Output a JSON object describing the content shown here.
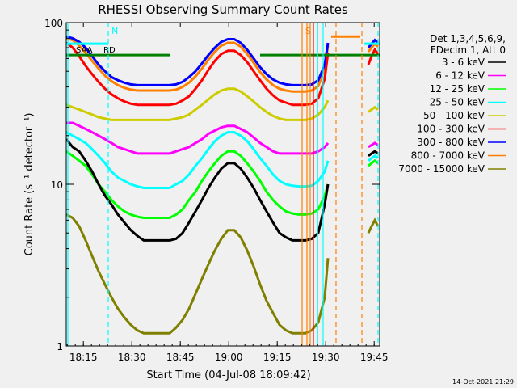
{
  "chart_data": {
    "type": "line",
    "title": "RHESSI Observing Summary Count Rates",
    "xlabel": "Start Time (04-Jul-08 18:09:42)",
    "ylabel": "Count Rate (s⁻¹ detector⁻¹)",
    "x_unit": "minutes after 18:09:42 UT",
    "xlim": [
      0,
      97
    ],
    "ylim": [
      1,
      100
    ],
    "yscale": "log",
    "x_ticks": [
      {
        "label": "18:15",
        "value": 5.3
      },
      {
        "label": "18:30",
        "value": 20.3
      },
      {
        "label": "18:45",
        "value": 35.3
      },
      {
        "label": "19:00",
        "value": 50.3
      },
      {
        "label": "19:15",
        "value": 65.3
      },
      {
        "label": "19:30",
        "value": 80.3
      },
      {
        "label": "19:45",
        "value": 95.3
      }
    ],
    "y_ticks": [
      {
        "label": "1",
        "value": 1
      },
      {
        "label": "10",
        "value": 10
      },
      {
        "label": "100",
        "value": 100
      }
    ],
    "legend": {
      "position": "right",
      "header": [
        "Det 1,3,4,5,6,9,",
        "FDecim 1, Att 0"
      ]
    },
    "x": [
      0,
      2,
      4,
      6,
      8,
      10,
      12,
      14,
      16,
      18,
      20,
      22,
      24,
      26,
      28,
      30,
      32,
      34,
      36,
      38,
      40,
      42,
      44,
      46,
      48,
      50,
      52,
      54,
      56,
      58,
      60,
      62,
      64,
      66,
      68,
      70,
      72,
      74,
      76,
      78,
      80,
      81
    ],
    "series": [
      {
        "name": "3 - 6 keV",
        "color": "#000000",
        "values": [
          19,
          17,
          16,
          14,
          12,
          10,
          8.5,
          7.5,
          6.5,
          5.8,
          5.2,
          4.8,
          4.5,
          4.5,
          4.5,
          4.5,
          4.5,
          4.6,
          5,
          5.8,
          6.8,
          8,
          9.5,
          11,
          12.5,
          13.5,
          13.5,
          12.5,
          11,
          9.5,
          8,
          6.8,
          5.8,
          5,
          4.7,
          4.5,
          4.5,
          4.5,
          4.6,
          5,
          7.5,
          10
        ]
      },
      {
        "name": "6 - 12 keV",
        "color": "#ff00ff",
        "values": [
          24,
          24,
          23,
          22,
          21,
          20,
          19,
          18,
          17,
          16.5,
          16,
          15.5,
          15.5,
          15.5,
          15.5,
          15.5,
          15.5,
          16,
          16.5,
          17,
          18,
          19,
          20.5,
          21.5,
          22.5,
          23,
          23,
          22,
          21,
          19.5,
          18,
          17,
          16,
          15.5,
          15.5,
          15.5,
          15.5,
          15.5,
          15.5,
          16,
          17,
          18
        ]
      },
      {
        "name": "12 - 25 keV",
        "color": "#00ff00",
        "values": [
          16,
          15,
          14,
          13,
          11.5,
          10,
          9,
          8,
          7.3,
          6.8,
          6.5,
          6.3,
          6.2,
          6.2,
          6.2,
          6.2,
          6.2,
          6.5,
          7,
          8,
          9,
          10.5,
          12,
          13.5,
          15,
          16,
          16,
          15,
          13.5,
          12,
          10.5,
          9,
          8,
          7.3,
          6.8,
          6.6,
          6.5,
          6.5,
          6.6,
          7,
          8.5,
          10
        ]
      },
      {
        "name": "25 - 50 keV",
        "color": "#00ffff",
        "values": [
          21,
          20,
          19,
          18,
          16.5,
          15,
          13.5,
          12,
          11,
          10.5,
          10,
          9.7,
          9.5,
          9.5,
          9.5,
          9.5,
          9.5,
          10,
          10.5,
          11.5,
          13,
          14.5,
          16.5,
          18.5,
          20,
          21,
          21,
          20,
          18.5,
          16.5,
          14.5,
          13,
          11.5,
          10.5,
          10,
          9.8,
          9.7,
          9.7,
          9.8,
          10.5,
          12,
          14
        ]
      },
      {
        "name": "50 - 100 keV",
        "color": "#cccc00",
        "values": [
          31,
          30,
          29,
          28,
          27,
          26,
          25.5,
          25,
          25,
          25,
          25,
          25,
          25,
          25,
          25,
          25,
          25,
          25.5,
          26,
          27,
          29,
          31,
          33.5,
          36,
          38,
          39,
          39,
          37.5,
          35,
          32.5,
          30,
          28,
          26.5,
          25.5,
          25,
          25,
          25,
          25,
          25.5,
          27,
          30,
          33
        ]
      },
      {
        "name": "100 - 300 keV",
        "color": "#ff0000",
        "values": [
          75,
          70,
          62,
          54,
          48,
          43,
          39,
          36,
          34,
          32.5,
          31.5,
          31,
          31,
          31,
          31,
          31,
          31,
          31.5,
          33,
          35,
          39,
          44,
          51,
          58,
          64,
          67,
          67,
          63,
          57,
          50,
          44,
          39,
          35.5,
          33,
          32,
          31,
          31,
          31,
          31.5,
          34,
          45,
          65
        ]
      },
      {
        "name": "300 - 800 keV",
        "color": "#0000ff",
        "values": [
          82,
          80,
          76,
          70,
          62,
          55,
          50,
          46,
          44,
          42.5,
          41.5,
          41,
          41,
          41,
          41,
          41,
          41,
          41.5,
          43,
          46,
          50,
          56,
          63,
          70,
          76,
          79,
          79,
          75,
          68,
          60,
          53,
          48,
          44.5,
          42.5,
          41.5,
          41,
          41,
          41,
          41.5,
          44,
          55,
          75
        ]
      },
      {
        "name": "800 - 7000 keV",
        "color": "#ff8000",
        "values": [
          80,
          78,
          72,
          65,
          58,
          52,
          47,
          43.5,
          41,
          39.5,
          38.5,
          38,
          38,
          38,
          38,
          38,
          38,
          38.5,
          40,
          42.5,
          46.5,
          52,
          59,
          66,
          72,
          75,
          75,
          71,
          64,
          56.5,
          49.5,
          44.5,
          41,
          39,
          38,
          37.5,
          37.5,
          37.5,
          38,
          40.5,
          52,
          72
        ]
      },
      {
        "name": "7000 - 15000 keV",
        "color": "#808000",
        "values": [
          6.5,
          6.2,
          5.5,
          4.5,
          3.6,
          2.9,
          2.4,
          2,
          1.7,
          1.5,
          1.35,
          1.25,
          1.2,
          1.2,
          1.2,
          1.2,
          1.2,
          1.3,
          1.45,
          1.7,
          2.1,
          2.6,
          3.2,
          3.9,
          4.6,
          5.2,
          5.2,
          4.7,
          3.9,
          3.1,
          2.4,
          1.9,
          1.6,
          1.35,
          1.25,
          1.2,
          1.2,
          1.2,
          1.25,
          1.4,
          2,
          3.5
        ]
      }
    ],
    "late_segment": {
      "x": [
        93.5,
        94.5,
        95.5,
        96.5
      ],
      "values": [
        [
          15,
          15.5,
          16,
          15.5
        ],
        [
          17,
          17.5,
          18,
          17.5
        ],
        [
          13,
          13.5,
          14,
          13.5
        ],
        [
          14,
          14.5,
          15,
          14.5
        ],
        [
          28,
          29,
          30,
          29
        ],
        [
          55,
          62,
          68,
          64
        ],
        [
          70,
          74,
          78,
          75
        ],
        [
          66,
          70,
          74,
          71
        ],
        [
          5,
          5.5,
          6,
          5.5
        ]
      ]
    },
    "status_bars": [
      {
        "color": "#008000",
        "value": 63,
        "segments": [
          [
            0,
            32
          ],
          [
            60,
            97
          ]
        ]
      },
      {
        "color": "#00ffff",
        "value": 74,
        "segments": [
          [
            0,
            13
          ],
          [
            92,
            97
          ]
        ]
      },
      {
        "color": "#ff8000",
        "value": 82,
        "segments": [
          [
            82,
            91
          ]
        ]
      }
    ],
    "markers": [
      {
        "label": "N",
        "x": 13,
        "color": "#00ffff",
        "style": "dashed"
      },
      {
        "label": "",
        "x": 0.5,
        "color": "#00ffff",
        "style": "solid"
      },
      {
        "label": "",
        "x": 96.5,
        "color": "#00ffff",
        "style": "dashed"
      },
      {
        "label": "",
        "x": 83.5,
        "color": "#ff8000",
        "style": "dashed"
      },
      {
        "label": "",
        "x": 91.5,
        "color": "#ff8000",
        "style": "dashed"
      },
      {
        "label": "S",
        "x": 73,
        "color": "#ff8000",
        "style": "solid"
      },
      {
        "label": "",
        "x": 74.5,
        "color": "#ff8000",
        "style": "solid"
      },
      {
        "label": "",
        "x": 75.5,
        "color": "#ff8000",
        "style": "solid"
      },
      {
        "label": "",
        "x": 76.5,
        "color": "#ff0000",
        "style": "solid"
      },
      {
        "label": "",
        "x": 77.8,
        "color": "#00ffff",
        "style": "solid"
      },
      {
        "label": "",
        "x": 79.5,
        "color": "#00ffff",
        "style": "solid"
      }
    ],
    "region_labels": [
      {
        "label": "SAA",
        "x": 3
      },
      {
        "label": "RD",
        "x": 11.5
      }
    ]
  },
  "timestamp": "14-Oct-2021 21:29"
}
